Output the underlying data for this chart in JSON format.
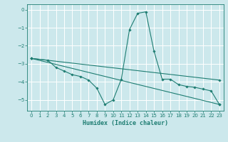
{
  "xlabel": "Humidex (Indice chaleur)",
  "bg_color": "#cce8ec",
  "grid_color": "#ffffff",
  "line_color": "#1e7d72",
  "xlim": [
    -0.5,
    23.5
  ],
  "ylim": [
    -5.6,
    0.3
  ],
  "xticks": [
    0,
    1,
    2,
    3,
    4,
    5,
    6,
    7,
    8,
    9,
    10,
    11,
    12,
    13,
    14,
    15,
    16,
    17,
    18,
    19,
    20,
    21,
    22,
    23
  ],
  "yticks": [
    0,
    -1,
    -2,
    -3,
    -4,
    -5
  ],
  "line1_x": [
    0,
    23
  ],
  "line1_y": [
    -2.7,
    -3.9
  ],
  "line2_x": [
    0,
    23
  ],
  "line2_y": [
    -2.7,
    -5.25
  ],
  "line3_x": [
    0,
    2,
    3,
    4,
    5,
    6,
    7,
    8,
    9,
    10,
    11,
    12,
    13,
    14,
    15,
    16,
    17,
    18,
    19,
    20,
    21,
    22,
    23
  ],
  "line3_y": [
    -2.7,
    -2.8,
    -3.2,
    -3.4,
    -3.6,
    -3.7,
    -3.9,
    -4.35,
    -5.25,
    -5.0,
    -3.85,
    -1.1,
    -0.2,
    -0.12,
    -2.3,
    -3.85,
    -3.85,
    -4.15,
    -4.25,
    -4.3,
    -4.4,
    -4.5,
    -5.25
  ]
}
